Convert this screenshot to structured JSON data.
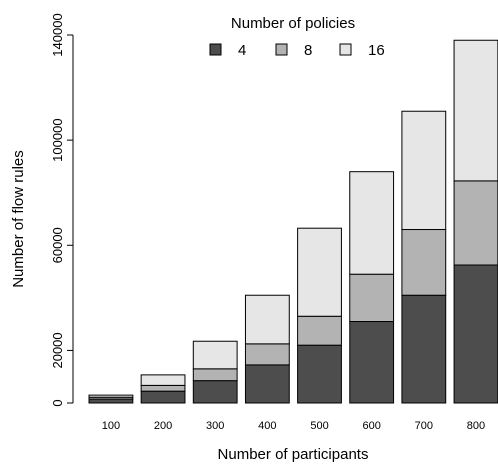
{
  "chart_data": {
    "type": "bar",
    "stacked": true,
    "categories": [
      "100",
      "200",
      "300",
      "400",
      "500",
      "600",
      "700",
      "800"
    ],
    "series": [
      {
        "name": "4",
        "color": "#4d4d4d",
        "values": [
          1500,
          4500,
          8500,
          14500,
          22000,
          31000,
          41000,
          52500
        ]
      },
      {
        "name": "8",
        "color": "#b3b3b3",
        "values": [
          700,
          2200,
          4500,
          8000,
          11000,
          18000,
          25000,
          32000
        ]
      },
      {
        "name": "16",
        "color": "#e6e6e6",
        "values": [
          800,
          4000,
          10500,
          18500,
          33500,
          39000,
          45000,
          53500
        ]
      }
    ],
    "title": "",
    "xlabel": "Number of participants",
    "ylabel": "Number of flow rules",
    "ylim": [
      0,
      140000
    ],
    "yticks": [
      0,
      20000,
      60000,
      100000,
      140000
    ],
    "legend": {
      "title": "Number of policies",
      "position": "top-center"
    },
    "grid": false
  }
}
